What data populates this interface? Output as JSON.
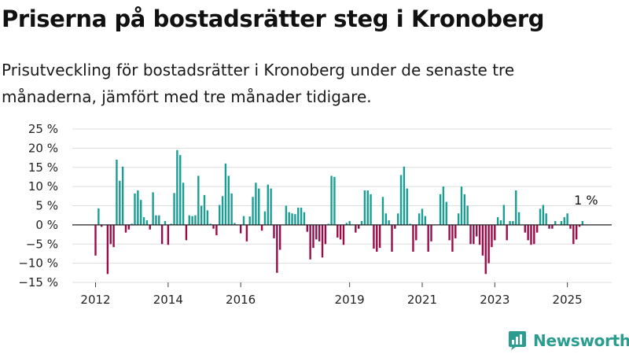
{
  "header": {
    "title": "Priserna på bostadsrätter steg i Kronoberg",
    "subtitle": "Prisutveckling för bostadsrätter i Kronoberg under de senaste tre månaderna, jämfört med tre månader tidigare."
  },
  "brand": {
    "name": "Newsworthy",
    "icon": "newsworthy-logo-icon",
    "color": "#2a9d8f"
  },
  "chart_data": {
    "type": "bar",
    "title": "",
    "xlabel": "",
    "ylabel": "",
    "unit": "%",
    "ylim": [
      -15,
      25
    ],
    "yticks": [
      -15,
      -10,
      -5,
      0,
      5,
      10,
      15,
      20,
      25
    ],
    "ytick_labels": [
      "−15 %",
      "−10 %",
      "−5 %",
      "0 %",
      "5 %",
      "10 %",
      "15 %",
      "20 %",
      "25 %"
    ],
    "xticks": [
      {
        "label": "2012",
        "date": "2012-01"
      },
      {
        "label": "2014",
        "date": "2014-01"
      },
      {
        "label": "2016",
        "date": "2016-01"
      },
      {
        "label": "2019",
        "date": "2019-01"
      },
      {
        "label": "2021",
        "date": "2021-01"
      },
      {
        "label": "2023",
        "date": "2023-01"
      },
      {
        "label": "2025",
        "date": "2025-01"
      }
    ],
    "grid": true,
    "positive_color": "#1a9e94",
    "negative_color": "#9b0b4a",
    "start": "2012-01",
    "values": [
      -8,
      4.3,
      -0.5,
      0,
      -12.8,
      -5,
      -5.8,
      17,
      11.5,
      15.2,
      -2,
      -1.2,
      0.3,
      8.2,
      9,
      6.5,
      2,
      1.2,
      -1.2,
      8.5,
      2.5,
      2.5,
      -5,
      1,
      -5.2,
      0.3,
      8.3,
      19.5,
      18.2,
      11,
      -4,
      2.5,
      2.3,
      2.5,
      12.8,
      5,
      7.8,
      3.8,
      0.3,
      -1,
      -2.7,
      5.2,
      7.5,
      16,
      12.8,
      8.2,
      0.5,
      0,
      -2.2,
      2.3,
      -4.3,
      2.2,
      7.3,
      11,
      9.5,
      -1.5,
      3.5,
      10.5,
      9.5,
      -3.5,
      -12.5,
      -6.5,
      0,
      5,
      3.3,
      3,
      2.8,
      4.5,
      4.5,
      3.3,
      -1.8,
      -9,
      -6,
      -3.8,
      -4.3,
      -8.5,
      -5,
      0.3,
      12.8,
      12.5,
      -3.3,
      -3.8,
      -5.2,
      0.5,
      1,
      0,
      -2,
      -1,
      1,
      9,
      9,
      8,
      -6.2,
      -7,
      -6,
      7.3,
      3,
      1.2,
      -7,
      -1,
      3,
      13,
      15.2,
      9.5,
      0.3,
      -7,
      -4,
      3,
      4.2,
      2.3,
      -7,
      -4.3,
      0,
      0,
      8,
      10,
      6,
      -4,
      -7,
      -3.5,
      3,
      10,
      8,
      5,
      -5,
      -5,
      -3,
      -5.2,
      -8,
      -12.8,
      -10,
      -5.8,
      -4,
      2,
      1.2,
      5.2,
      -4,
      1,
      1,
      9,
      3.3,
      0,
      -2,
      -4,
      -5.2,
      -5,
      -2,
      4.2,
      5.2,
      3,
      -1,
      -1,
      1,
      0,
      1,
      2,
      3,
      -1,
      -5,
      -3.8,
      -0.5,
      1
    ],
    "annotations": [
      {
        "text": "1 %",
        "date": "2025-03",
        "value": 1
      }
    ]
  }
}
